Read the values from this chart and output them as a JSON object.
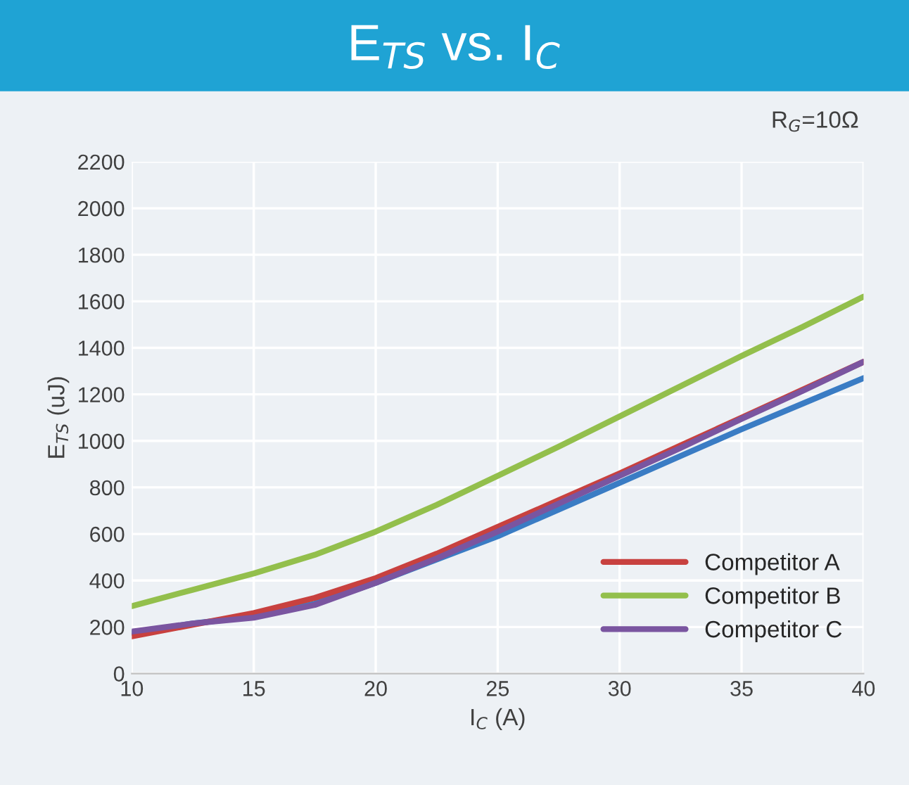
{
  "chart_data": {
    "type": "line",
    "title": "E$_{TS}$ vs. I$_{C}$",
    "xlabel": "I$_{C}$ (A)",
    "ylabel": "E$_{TS}$ (uJ)",
    "annotations": [
      "R$_{G}$=10Ω"
    ],
    "x": [
      10,
      12.5,
      15,
      17.5,
      20,
      22.5,
      25,
      27.5,
      30,
      32.5,
      35,
      37.5,
      40
    ],
    "series": [
      {
        "color": "#3a7cc4",
        "values": [
          175,
          215,
          245,
          300,
          390,
          490,
          590,
          705,
          820,
          935,
          1050,
          1160,
          1270
        ]
      },
      {
        "name": "Competitor A",
        "color": "#c8413f",
        "values": [
          160,
          210,
          260,
          325,
          410,
          515,
          630,
          745,
          860,
          980,
          1100,
          1220,
          1340
        ]
      },
      {
        "name": "Competitor B",
        "color": "#93bf4c",
        "values": [
          290,
          360,
          430,
          510,
          610,
          725,
          850,
          975,
          1105,
          1235,
          1365,
          1490,
          1620
        ]
      },
      {
        "name": "Competitor C",
        "color": "#7a55a0",
        "values": [
          180,
          215,
          240,
          295,
          390,
          495,
          610,
          730,
          850,
          970,
          1095,
          1215,
          1340
        ]
      }
    ],
    "xlim": [
      10,
      40
    ],
    "xticks": [
      10,
      15,
      20,
      25,
      30,
      35,
      40
    ],
    "ylim": [
      0,
      2200
    ],
    "yticks": [
      0,
      200,
      400,
      600,
      800,
      1000,
      1200,
      1400,
      1600,
      1800,
      2000,
      2200
    ],
    "grid": true,
    "legend": "bottom right",
    "line_style": "solid",
    "marker": "none"
  }
}
